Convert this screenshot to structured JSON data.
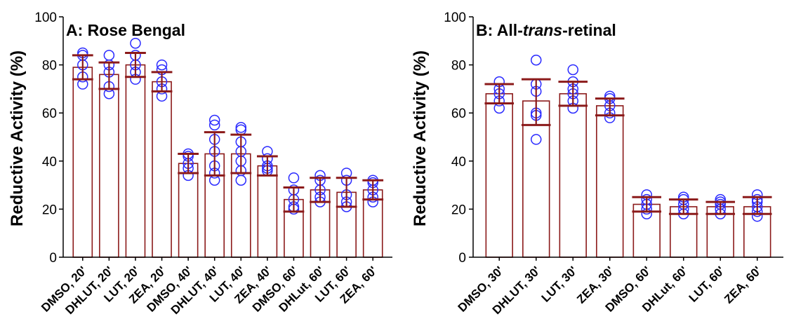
{
  "colors": {
    "bar": "#8b1a1a",
    "point": "#2a2aff",
    "axis": "#000000"
  },
  "chart_data": [
    {
      "type": "bar",
      "title": "A: Rose Bengal",
      "title_parts": [
        {
          "text": "A: Rose Bengal",
          "italic": false
        }
      ],
      "ylabel": "Reductive Activity (%)",
      "xlabel": "",
      "ylim": [
        0,
        100
      ],
      "yticks": [
        0,
        20,
        40,
        60,
        80,
        100
      ],
      "grid": false,
      "categories": [
        "DMSO, 20'",
        "DHLUT, 20'",
        "LUT, 20'",
        "ZEA, 20'",
        "DMSO, 40'",
        "DHLUT, 40'",
        "LUT, 40'",
        "ZEA, 40'",
        "DMSO, 60'",
        "DHLut, 60'",
        "LUT, 60'",
        "ZEA, 60'"
      ],
      "values": [
        79,
        76,
        80,
        73,
        39,
        43,
        43,
        38,
        24,
        28,
        27,
        28
      ],
      "error_low": [
        74,
        70,
        75,
        69,
        35,
        34,
        35,
        34,
        19,
        23,
        21,
        24
      ],
      "error_high": [
        84,
        81,
        85,
        77,
        43,
        52,
        51,
        42,
        29,
        33,
        33,
        32
      ],
      "points": [
        [
          72,
          75,
          80,
          84,
          85
        ],
        [
          68,
          71,
          77,
          80,
          84
        ],
        [
          74,
          77,
          80,
          84,
          89
        ],
        [
          67,
          70,
          73,
          78,
          80
        ],
        [
          34,
          37,
          39,
          42,
          43
        ],
        [
          32,
          35,
          38,
          44,
          49,
          55,
          57
        ],
        [
          32,
          36,
          40,
          44,
          48,
          53,
          54
        ],
        [
          36,
          37,
          38,
          41,
          44
        ],
        [
          20,
          21,
          24,
          28,
          33
        ],
        [
          23,
          25,
          28,
          32,
          34
        ],
        [
          21,
          23,
          26,
          32,
          35
        ],
        [
          23,
          25,
          28,
          31,
          32
        ]
      ]
    },
    {
      "type": "bar",
      "title": "B: All-trans-retinal",
      "title_parts": [
        {
          "text": "B: All-",
          "italic": false
        },
        {
          "text": "trans",
          "italic": true
        },
        {
          "text": "-retinal",
          "italic": false
        }
      ],
      "ylabel": "Reductive Activity (%)",
      "xlabel": "",
      "ylim": [
        0,
        100
      ],
      "yticks": [
        0,
        20,
        40,
        60,
        80,
        100
      ],
      "grid": false,
      "categories": [
        "DMSO, 30'",
        "DHLUT, 30'",
        "LUT, 30'",
        "ZEA, 30'",
        "DMSO, 60'",
        "DHLut, 60'",
        "LUT, 60'",
        "ZEA, 60'"
      ],
      "values": [
        68,
        65,
        68,
        63,
        22,
        21,
        21,
        21
      ],
      "error_low": [
        64,
        55,
        63,
        59,
        19,
        18,
        18,
        18
      ],
      "error_high": [
        72,
        74,
        73,
        66,
        25,
        24,
        23,
        25
      ],
      "points": [
        [
          62,
          65,
          68,
          70,
          73
        ],
        [
          49,
          59,
          60,
          69,
          72,
          82
        ],
        [
          62,
          65,
          68,
          70,
          73,
          78
        ],
        [
          58,
          60,
          63,
          66,
          67
        ],
        [
          18,
          20,
          22,
          24,
          26
        ],
        [
          18,
          20,
          22,
          24,
          25
        ],
        [
          18,
          20,
          22,
          23,
          24
        ],
        [
          17,
          19,
          21,
          23,
          24,
          26
        ]
      ]
    }
  ]
}
